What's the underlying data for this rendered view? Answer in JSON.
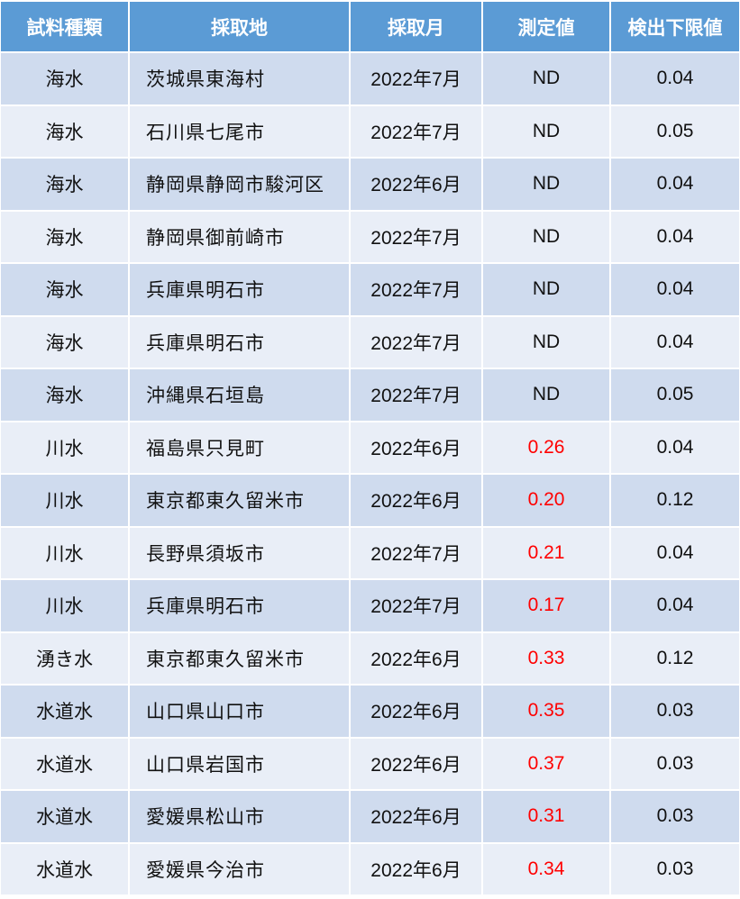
{
  "headers": [
    "試料種類",
    "採取地",
    "採取月",
    "測定値",
    "検出下限値"
  ],
  "colors": {
    "header": "#5B9BD5",
    "row_odd": "#CFDBEE",
    "row_even": "#E9EEF7",
    "detected_value": "#FF0000"
  },
  "rows": [
    [
      "海水",
      "茨城県東海村",
      "2022年7月",
      "ND",
      "0.04"
    ],
    [
      "海水",
      "石川県七尾市",
      "2022年7月",
      "ND",
      "0.05"
    ],
    [
      "海水",
      "静岡県静岡市駿河区",
      "2022年6月",
      "ND",
      "0.04"
    ],
    [
      "海水",
      "静岡県御前崎市",
      "2022年7月",
      "ND",
      "0.04"
    ],
    [
      "海水",
      "兵庫県明石市",
      "2022年7月",
      "ND",
      "0.04"
    ],
    [
      "海水",
      "兵庫県明石市",
      "2022年7月",
      "ND",
      "0.04"
    ],
    [
      "海水",
      "沖縄県石垣島",
      "2022年7月",
      "ND",
      "0.05"
    ],
    [
      "川水",
      "福島県只見町",
      "2022年6月",
      "0.26",
      "0.04"
    ],
    [
      "川水",
      "東京都東久留米市",
      "2022年6月",
      "0.20",
      "0.12"
    ],
    [
      "川水",
      "長野県須坂市",
      "2022年7月",
      "0.21",
      "0.04"
    ],
    [
      "川水",
      "兵庫県明石市",
      "2022年7月",
      "0.17",
      "0.04"
    ],
    [
      "湧き水",
      "東京都東久留米市",
      "2022年6月",
      "0.33",
      "0.12"
    ],
    [
      "水道水",
      "山口県山口市",
      "2022年6月",
      "0.35",
      "0.03"
    ],
    [
      "水道水",
      "山口県岩国市",
      "2022年6月",
      "0.37",
      "0.03"
    ],
    [
      "水道水",
      "愛媛県松山市",
      "2022年6月",
      "0.31",
      "0.03"
    ],
    [
      "水道水",
      "愛媛県今治市",
      "2022年6月",
      "0.34",
      "0.03"
    ]
  ]
}
